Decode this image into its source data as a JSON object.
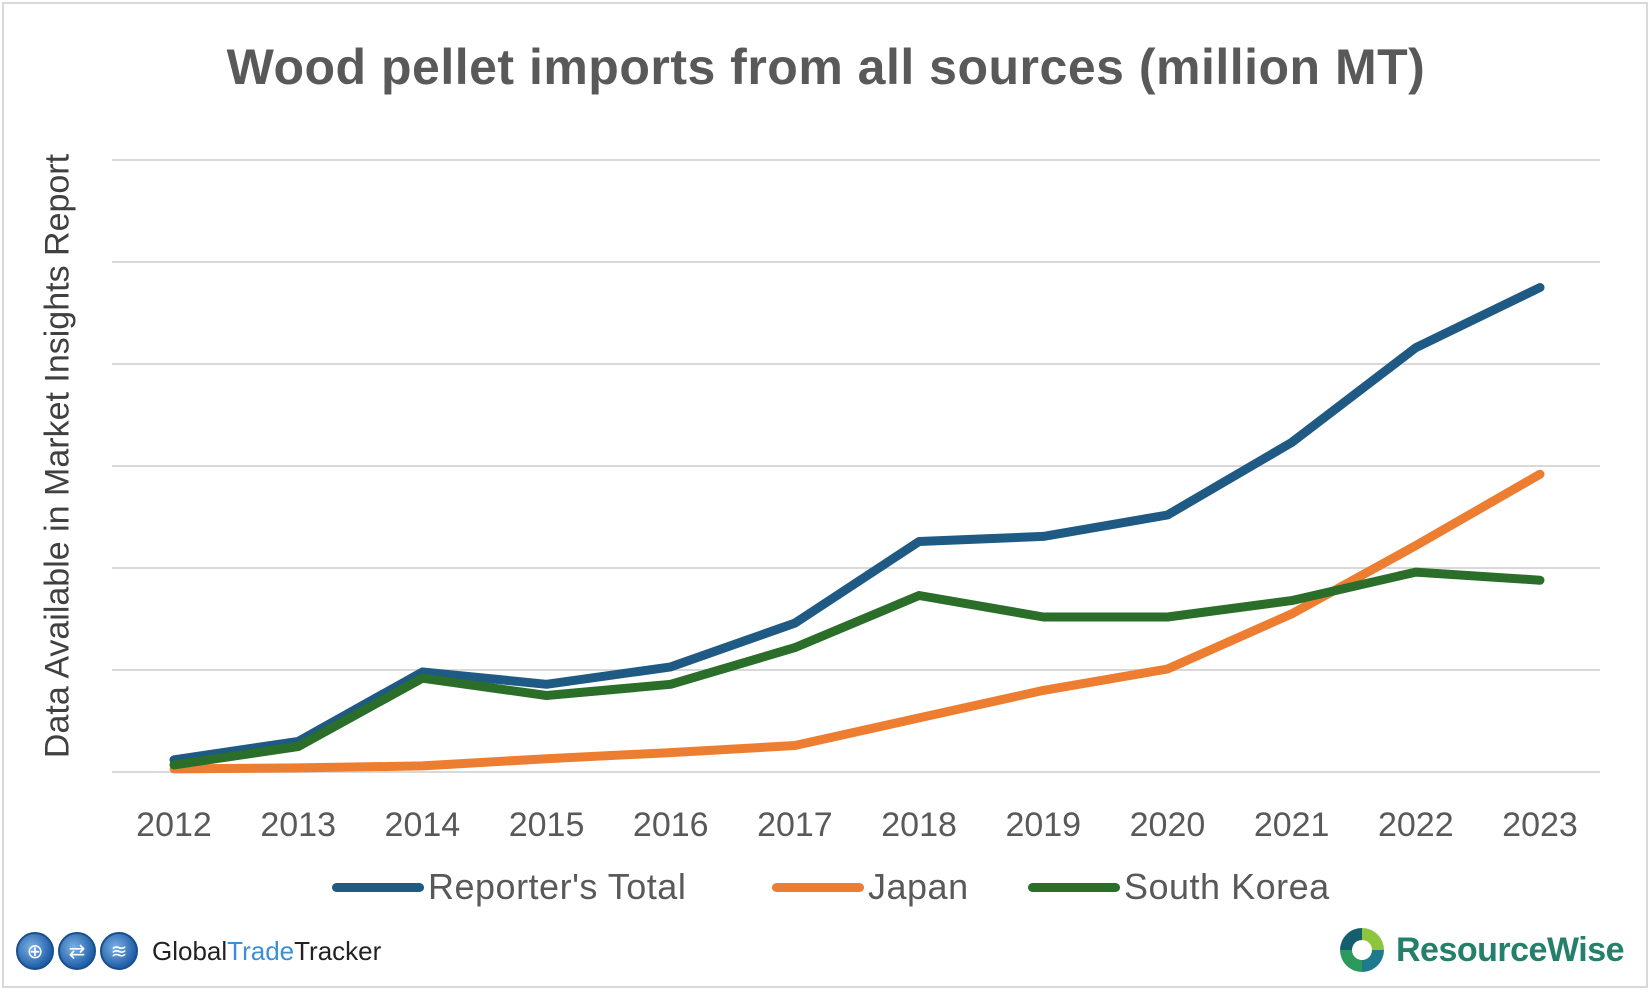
{
  "chart_data": {
    "type": "line",
    "title": "Wood pellet imports from all sources (million MT)",
    "ylabel": "Data Available in Market Insights Report",
    "xlabel": "",
    "x": [
      "2012",
      "2013",
      "2014",
      "2015",
      "2016",
      "2017",
      "2018",
      "2019",
      "2020",
      "2021",
      "2022",
      "2023"
    ],
    "ylim": [
      0,
      6
    ],
    "y_ticks_labeled": false,
    "grid": true,
    "legend_position": "bottom",
    "series": [
      {
        "name": "Reporter's Total",
        "color": "#1f5a84",
        "values": [
          0.12,
          0.3,
          0.98,
          0.86,
          1.03,
          1.46,
          2.26,
          2.31,
          2.52,
          3.23,
          4.16,
          4.75
        ]
      },
      {
        "name": "Japan",
        "color": "#ed7d31",
        "values": [
          0.03,
          0.04,
          0.06,
          0.13,
          0.19,
          0.26,
          0.53,
          0.8,
          1.01,
          1.55,
          2.22,
          2.92
        ]
      },
      {
        "name": "South Korea",
        "color": "#2a6e2a",
        "values": [
          0.07,
          0.25,
          0.92,
          0.75,
          0.86,
          1.22,
          1.73,
          1.52,
          1.52,
          1.68,
          1.96,
          1.88
        ]
      }
    ]
  },
  "branding": {
    "gtt_prefix": "Global",
    "gtt_middle": "Trade",
    "gtt_suffix": "Tracker",
    "rw_name": "ResourceWise"
  }
}
